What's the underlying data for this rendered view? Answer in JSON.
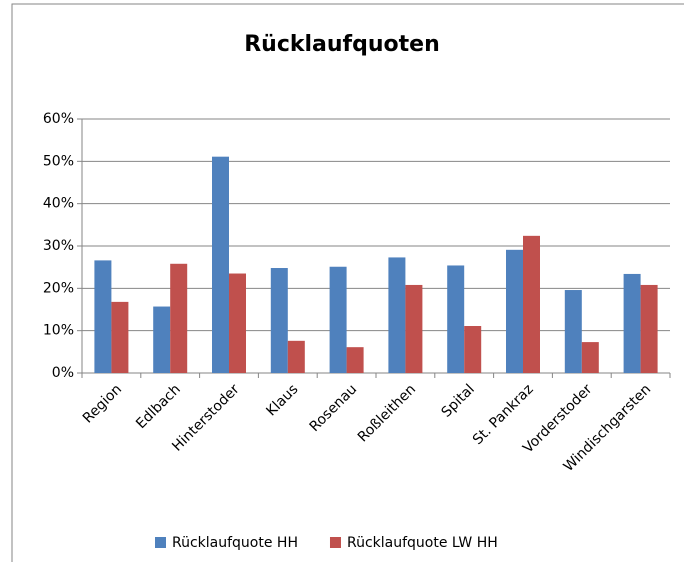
{
  "chart_data": {
    "type": "bar",
    "title": "Rücklaufquoten",
    "categories": [
      "Region",
      "Edlbach",
      "Hinterstoder",
      "Klaus",
      "Rosenau",
      "Roßleithen",
      "Spital",
      "St. Pankraz",
      "Vorderstoder",
      "Windischgarsten"
    ],
    "series": [
      {
        "name": "Rücklaufquote HH",
        "color": "#4f81bd",
        "values": [
          26.6,
          15.7,
          51.1,
          24.8,
          25.1,
          27.3,
          25.4,
          29.1,
          19.6,
          23.4
        ]
      },
      {
        "name": "Rücklaufquote LW HH",
        "color": "#c0504d",
        "values": [
          16.8,
          25.8,
          23.5,
          7.6,
          6.1,
          20.8,
          11.1,
          32.4,
          7.3,
          20.8
        ]
      }
    ],
    "ylim": [
      0,
      60
    ],
    "yticks": [
      {
        "value": 0,
        "label": "0%"
      },
      {
        "value": 10,
        "label": "10%"
      },
      {
        "value": 20,
        "label": "20%"
      },
      {
        "value": 30,
        "label": "30%"
      },
      {
        "value": 40,
        "label": "40%"
      },
      {
        "value": 50,
        "label": "50%"
      },
      {
        "value": 60,
        "label": "60%"
      }
    ],
    "grid": true,
    "legend": "bottom"
  }
}
